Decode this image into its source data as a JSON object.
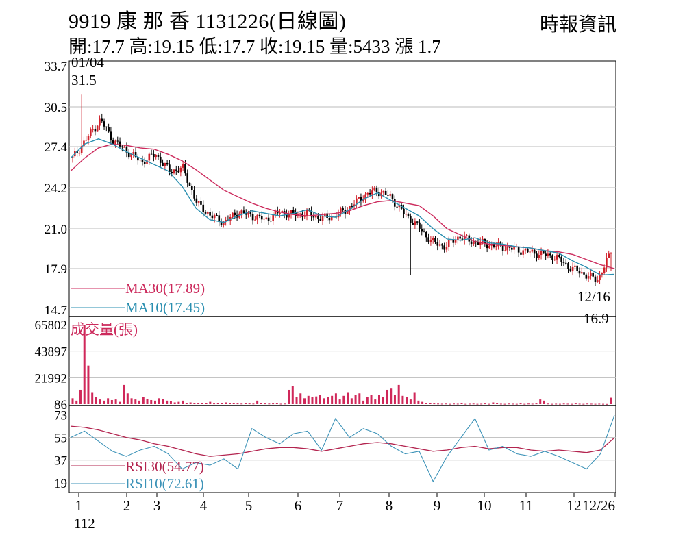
{
  "header": {
    "title": "9919 康 那 香 1131226(日線圖)",
    "source": "時報資訊",
    "ohlc": "開:17.7 高:19.15 低:17.7 收:19.15 量:5433 漲 1.7"
  },
  "colors": {
    "ma30": "#cc2a5c",
    "ma10": "#2a8fb0",
    "volume": "#d0285a",
    "rsi30": "#b3244f",
    "rsi10": "#3d93b8",
    "candle_up": "#d0202a",
    "candle_down": "#000000",
    "grid": "#bbbbbb"
  },
  "chart_data": [
    {
      "type": "line",
      "panel": "price",
      "y_ticks": [
        "33.7",
        "30.5",
        "27.4",
        "24.2",
        "21.0",
        "17.9",
        "14.7"
      ],
      "y_tick_values": [
        33.7,
        30.5,
        27.4,
        24.2,
        21.0,
        17.9,
        14.7
      ],
      "ylim": [
        14.7,
        33.7
      ],
      "annotations": [
        {
          "date": "01/04",
          "value": "31.5"
        },
        {
          "date": "12/16",
          "value": "16.9"
        }
      ],
      "series": [
        {
          "name": "MA30(17.89)",
          "values": [
            25.5,
            26.5,
            27.3,
            27.6,
            27.5,
            27.3,
            27.2,
            26.8,
            26.3,
            25.6,
            24.8,
            24.0,
            23.5,
            23.0,
            22.6,
            22.3,
            22.1,
            22.0,
            22.1,
            22.2,
            22.4,
            22.8,
            23.1,
            23.2,
            23.0,
            22.8,
            22.0,
            21.0,
            20.5,
            20.0,
            19.8,
            19.7,
            19.6,
            19.5,
            19.3,
            19.2,
            19.0,
            18.6,
            18.2,
            17.9
          ]
        },
        {
          "name": "MA10(17.45)",
          "values": [
            26.5,
            27.6,
            28.0,
            27.6,
            27.0,
            26.5,
            26.0,
            25.5,
            24.3,
            22.6,
            21.7,
            21.5,
            22.0,
            22.4,
            22.2,
            22.0,
            22.2,
            22.5,
            22.0,
            21.9,
            22.5,
            23.3,
            23.8,
            23.2,
            22.6,
            22.0,
            21.0,
            20.2,
            20.1,
            20.3,
            19.9,
            19.8,
            19.6,
            19.5,
            19.3,
            19.1,
            18.5,
            18.0,
            17.4,
            17.45
          ]
        }
      ],
      "candles_approx": {
        "note": "close values approximated",
        "closes": [
          26.5,
          28.0,
          29.5,
          27.8,
          27.0,
          26.2,
          26.8,
          25.5,
          25.7,
          23.0,
          22.0,
          21.5,
          22.3,
          22.0,
          21.7,
          22.3,
          22.1,
          22.2,
          21.8,
          22.0,
          22.6,
          23.5,
          24.0,
          23.5,
          22.2,
          21.2,
          20.0,
          19.6,
          20.4,
          20.0,
          19.8,
          19.6,
          19.4,
          19.2,
          19.0,
          18.8,
          18.0,
          17.5,
          17.0,
          19.15
        ]
      }
    },
    {
      "type": "bar",
      "panel": "volume",
      "title": "成交量(張)",
      "y_ticks": [
        "65802",
        "43897",
        "21992",
        "86"
      ],
      "y_tick_values": [
        65802,
        43897,
        21992,
        86
      ],
      "ylim": [
        86,
        65802
      ],
      "values": [
        5000,
        3000,
        12000,
        65800,
        32000,
        10000,
        6000,
        4000,
        3000,
        5000,
        3500,
        4000,
        2000,
        16000,
        9000,
        5000,
        4000,
        3000,
        6000,
        4500,
        3500,
        3000,
        5000,
        4500,
        3000,
        2500,
        1500,
        2000,
        3000,
        1200,
        1500,
        1000,
        900,
        800,
        1200,
        2000,
        600,
        800,
        700,
        1500,
        1000,
        800,
        600,
        500,
        700,
        600,
        500,
        3000,
        900,
        600,
        500,
        600,
        800,
        400,
        500,
        12000,
        15000,
        6000,
        9000,
        5000,
        7000,
        6000,
        6500,
        8000,
        5000,
        6000,
        7000,
        9000,
        4000,
        7000,
        10000,
        5000,
        8000,
        9000,
        3000,
        6000,
        8000,
        4000,
        8000,
        6000,
        12000,
        13000,
        8000,
        16000,
        7000,
        6000,
        4000,
        10000,
        3000,
        2000,
        800,
        1000,
        600,
        500,
        400,
        500,
        300,
        500,
        400,
        800,
        300,
        400,
        500,
        300,
        400,
        600,
        300,
        1500,
        800,
        400,
        300,
        500,
        400,
        300,
        600,
        300,
        500,
        400,
        600,
        4000,
        3000,
        500,
        300,
        400,
        300,
        500,
        400,
        300,
        600,
        400,
        300,
        500,
        400,
        300,
        400,
        300,
        200,
        5433
      ]
    },
    {
      "type": "line",
      "panel": "rsi",
      "y_ticks": [
        "73",
        "55",
        "37",
        "19"
      ],
      "y_tick_values": [
        73,
        55,
        37,
        19
      ],
      "ylim": [
        14,
        76
      ],
      "series": [
        {
          "name": "RSI30(54.77)",
          "values": [
            64,
            63,
            61,
            58,
            55,
            53,
            50,
            48,
            45,
            42,
            40,
            41,
            42,
            44,
            46,
            47,
            47,
            46,
            44,
            46,
            48,
            50,
            51,
            50,
            48,
            46,
            44,
            45,
            47,
            48,
            46,
            47,
            47,
            45,
            44,
            45,
            44,
            43,
            45,
            54.77
          ]
        },
        {
          "name": "RSI10(72.61)",
          "values": [
            55,
            60,
            52,
            44,
            40,
            45,
            48,
            42,
            30,
            35,
            33,
            38,
            30,
            62,
            55,
            50,
            58,
            60,
            45,
            70,
            55,
            62,
            58,
            48,
            42,
            44,
            20,
            40,
            55,
            70,
            45,
            48,
            42,
            40,
            44,
            40,
            35,
            30,
            42,
            72.61
          ]
        }
      ]
    }
  ],
  "x_axis": {
    "labels": [
      "1",
      "2",
      "3",
      "4",
      "5",
      "6",
      "7",
      "8",
      "9",
      "10",
      "11",
      "12",
      "12/26"
    ],
    "sub_label": "112"
  }
}
